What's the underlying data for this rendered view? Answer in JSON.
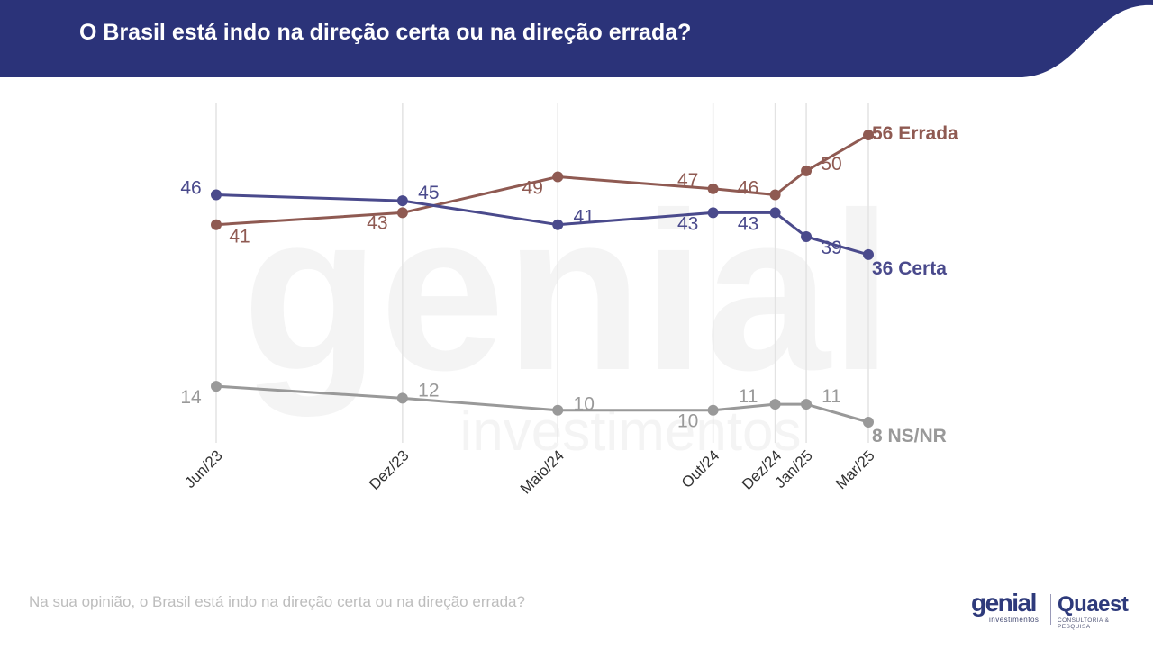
{
  "header": {
    "title": "O Brasil está indo na direção certa ou na direção errada?",
    "band_color": "#2b3379"
  },
  "footer": {
    "question": "Na sua opinião, o Brasil está indo na direção certa ou na direção errada?"
  },
  "watermark": {
    "word": "genial",
    "sub": "investimentos"
  },
  "logos": {
    "genial_word": "genial",
    "genial_sub": "investimentos",
    "quaest_word": "Quaest",
    "quaest_sub": "CONSULTORIA & PESQUISA"
  },
  "chart_data": {
    "type": "line",
    "x": [
      "Jun/23",
      "Dez/23",
      "Maio/24",
      "Out/24",
      "Dez/24",
      "Jan/25",
      "Mar/25"
    ],
    "x_dates": [
      "2023-06",
      "2023-12",
      "2024-05",
      "2024-10",
      "2024-12",
      "2025-01",
      "2025-03"
    ],
    "series": [
      {
        "name": "Errada",
        "end_label": "56 Errada",
        "color": "#8f5a52",
        "values": [
          41,
          43,
          49,
          47,
          46,
          50,
          56
        ]
      },
      {
        "name": "Certa",
        "end_label": "36 Certa",
        "color": "#4a4a8c",
        "values": [
          46,
          45,
          41,
          43,
          43,
          39,
          36
        ]
      },
      {
        "name": "NS/NR",
        "end_label": "8 NS/NR",
        "color": "#999999",
        "values": [
          14,
          12,
          10,
          10,
          11,
          11,
          8
        ]
      }
    ],
    "grid": "vertical",
    "legend": "none (series names at line ends)"
  }
}
